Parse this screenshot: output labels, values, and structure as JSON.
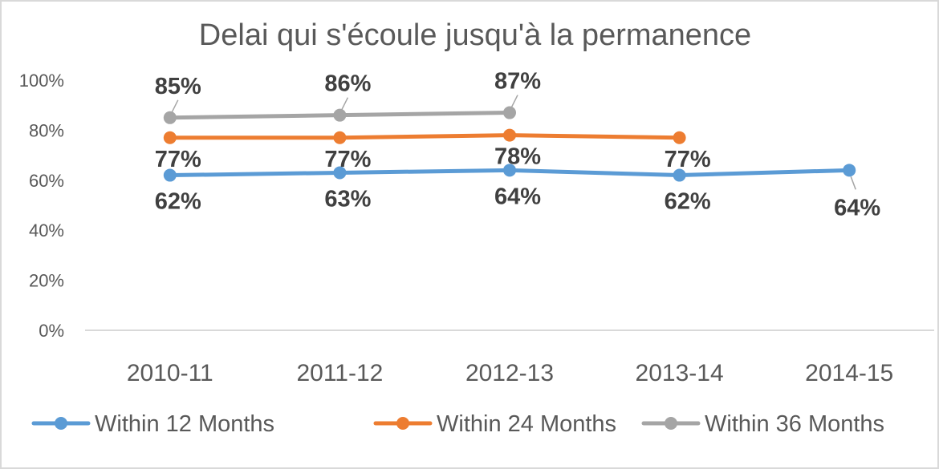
{
  "chart_data": {
    "type": "line",
    "title": "Delai qui s'écoule jusqu'à la permanence",
    "xlabel": "",
    "ylabel": "",
    "categories": [
      "2010-11",
      "2011-12",
      "2012-13",
      "2013-14",
      "2014-15"
    ],
    "ylim": [
      0,
      100
    ],
    "yticks": [
      0,
      20,
      40,
      60,
      80,
      100
    ],
    "ytick_labels": [
      "0%",
      "20%",
      "40%",
      "60%",
      "80%",
      "100%"
    ],
    "grid": false,
    "legend_position": "bottom",
    "series": [
      {
        "name": "Within 12 Months",
        "color": "#5b9bd5",
        "values": [
          62,
          63,
          64,
          62,
          64
        ],
        "labels": [
          "62%",
          "63%",
          "64%",
          "62%",
          "64%"
        ]
      },
      {
        "name": "Within 24 Months",
        "color": "#ed7d31",
        "values": [
          77,
          77,
          78,
          77,
          null
        ],
        "labels": [
          "77%",
          "77%",
          "78%",
          "77%",
          null
        ]
      },
      {
        "name": "Within 36 Months",
        "color": "#a5a5a5",
        "values": [
          85,
          86,
          87,
          null,
          null
        ],
        "labels": [
          "85%",
          "86%",
          "87%",
          null,
          null
        ]
      }
    ]
  }
}
